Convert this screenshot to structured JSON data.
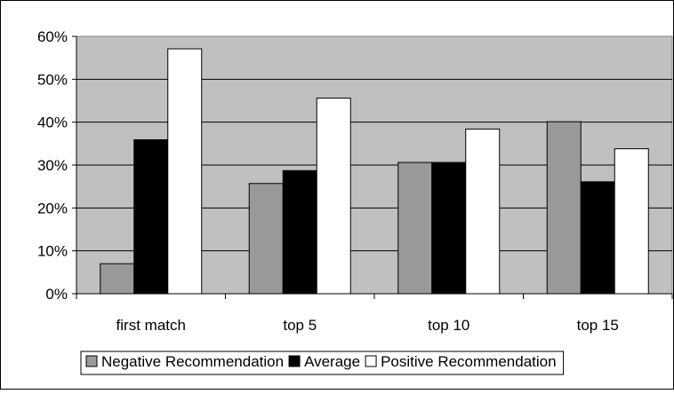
{
  "chart_data": {
    "type": "bar",
    "title": "",
    "xlabel": "",
    "ylabel": "",
    "categories": [
      "first match",
      "top 5",
      "top 10",
      "top 15"
    ],
    "series": [
      {
        "name": "Negative Recommendation",
        "values": [
          7,
          25.7,
          30.6,
          40.1
        ],
        "color": "#999999"
      },
      {
        "name": "Average",
        "values": [
          35.9,
          28.7,
          30.6,
          26.1
        ],
        "color": "#000000"
      },
      {
        "name": "Positive Recommendation",
        "values": [
          57.1,
          45.6,
          38.4,
          33.8
        ],
        "color": "#ffffff"
      }
    ],
    "ylim": [
      0,
      60
    ],
    "yticks": [
      0,
      10,
      20,
      30,
      40,
      50,
      60
    ],
    "ytick_labels": [
      "0%",
      "10%",
      "20%",
      "30%",
      "40%",
      "50%",
      "60%"
    ],
    "grid": true,
    "plot_background": "#c0c0c0",
    "legend_position": "bottom"
  }
}
